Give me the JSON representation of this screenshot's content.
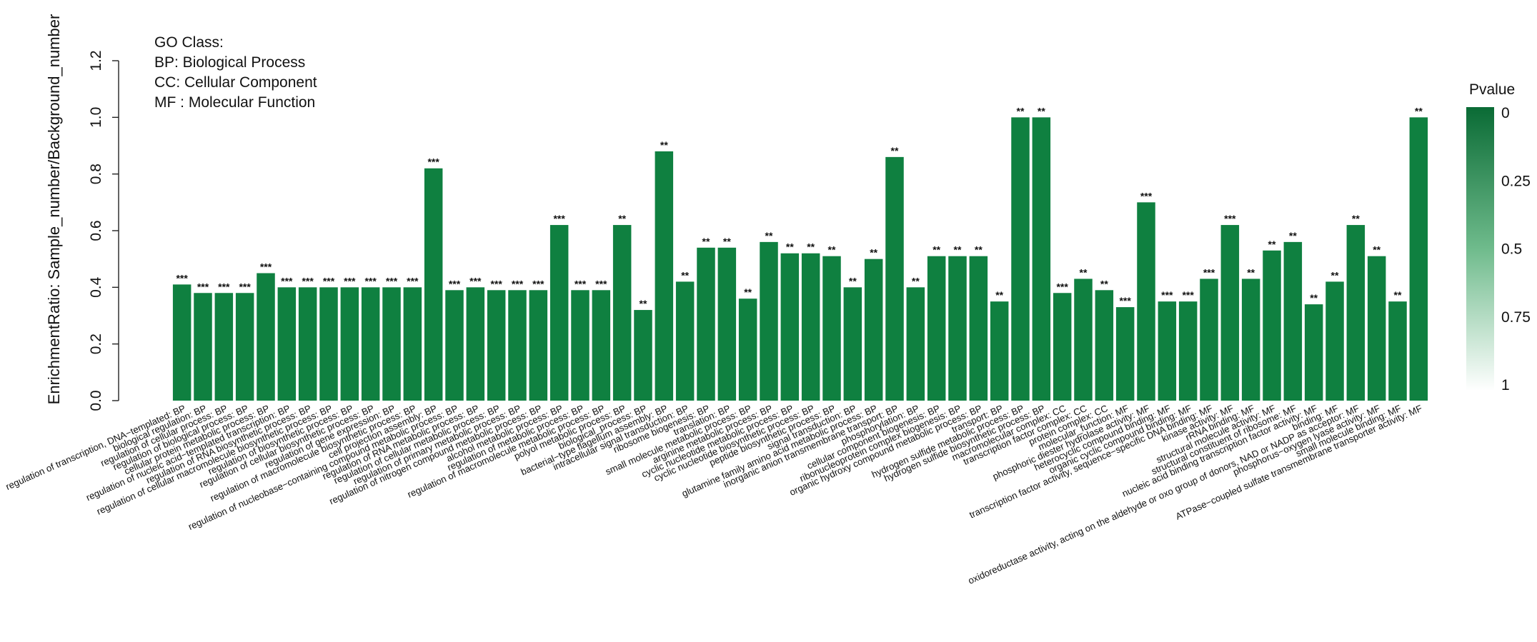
{
  "chart_data": {
    "type": "bar",
    "ylabel": "EnrichmentRatio: Sample_number/Background_number",
    "ylim": [
      0,
      1.2
    ],
    "yticks": [
      "0.0",
      "0.2",
      "0.4",
      "0.6",
      "0.8",
      "1.0",
      "1.2"
    ],
    "bar_color": "#0f8040",
    "categories": [
      "regulation of transcription, DNA−templated:  BP",
      "biological regulation:  BP",
      "regulation of cellular process:  BP",
      "regulation of biological process:  BP",
      "cellular protein metabolic process:  BP",
      "regulation of nucleic acid−templated transcription:  BP",
      "regulation of RNA biosynthetic process:  BP",
      "regulation of cellular macromolecule biosynthetic process:  BP",
      "regulation of biosynthetic process:  BP",
      "regulation of cellular biosynthetic process:  BP",
      "regulation of gene expression:  BP",
      "regulation of macromolecule biosynthetic process:  BP",
      "cell projection assembly:  BP",
      "regulation of nucleobase−containing compound metabolic process:  BP",
      "regulation of RNA metabolic process:  BP",
      "regulation of cellular metabolic process:  BP",
      "regulation of primary metabolic process:  BP",
      "regulation of nitrogen compound metabolic process:  BP",
      "alcohol metabolic process:  BP",
      "regulation of metabolic process:  BP",
      "regulation of macromolecule metabolic process:  BP",
      "polyol metabolic process:  BP",
      "biological_process:  BP",
      "bacterial−type flagellum assembly:  BP",
      "intracellular signal transduction:  BP",
      "ribosome biogenesis:  BP",
      "translation:  BP",
      "small molecule metabolic process:  BP",
      "arginine metabolic process:  BP",
      "cyclic nucleotide metabolic process:  BP",
      "cyclic nucleotide biosynthetic process:  BP",
      "peptide biosynthetic process:  BP",
      "signal transduction:  BP",
      "glutamine family amino acid metabolic process:  BP",
      "inorganic anion transmembrane transport:  BP",
      "phosphorylation:  BP",
      "cellular component biogenesis:  BP",
      "ribonucleoprotein complex biogenesis:  BP",
      "organic hydroxy compound metabolic process:  BP",
      "transport:  BP",
      "hydrogen sulfide metabolic process:  BP",
      "hydrogen sulfide biosynthetic process:  BP",
      "macromolecular complex:  CC",
      "transcription factor complex:  CC",
      "protein complex:  CC",
      "molecular_function:  MF",
      "phosphoric diester hydrolase activity:  MF",
      "heterocyclic compound binding:  MF",
      "organic cyclic compound binding:  MF",
      "transcription factor activity, sequence−specific DNA binding:  MF",
      "kinase activity:  MF",
      "rRNA binding:  MF",
      "structural molecule activity:  MF",
      "structural constituent of ribosome:  MF",
      "nucleic acid binding transcription factor activity:  MF",
      "binding:  MF",
      "oxidoreductase activity, acting on the aldehyde or oxo group of donors, NAD or NADP as acceptor:  MF",
      "phosphorus−oxygen lyase activity:  MF",
      "small molecule binding:  MF",
      "ATPase−coupled sulfate transmembrane transporter activity:  MF"
    ],
    "values": [
      0.41,
      0.38,
      0.38,
      0.38,
      0.45,
      0.4,
      0.4,
      0.4,
      0.4,
      0.4,
      0.4,
      0.4,
      0.82,
      0.39,
      0.4,
      0.39,
      0.39,
      0.39,
      0.62,
      0.39,
      0.39,
      0.62,
      0.32,
      0.88,
      0.42,
      0.54,
      0.54,
      0.36,
      0.56,
      0.52,
      0.52,
      0.51,
      0.4,
      0.5,
      0.86,
      0.4,
      0.51,
      0.51,
      0.51,
      0.35,
      1.0,
      1.0,
      0.38,
      0.43,
      0.39,
      0.33,
      0.7,
      0.35,
      0.35,
      0.43,
      0.62,
      0.43,
      0.53,
      0.56,
      0.34,
      0.42,
      0.62,
      0.51,
      0.35,
      1.0
    ],
    "significance": [
      "***",
      "***",
      "***",
      "***",
      "***",
      "***",
      "***",
      "***",
      "***",
      "***",
      "***",
      "***",
      "***",
      "***",
      "***",
      "***",
      "***",
      "***",
      "***",
      "***",
      "***",
      "**",
      "**",
      "**",
      "**",
      "**",
      "**",
      "**",
      "**",
      "**",
      "**",
      "**",
      "**",
      "**",
      "**",
      "**",
      "**",
      "**",
      "**",
      "**",
      "**",
      "**",
      "***",
      "**",
      "**",
      "***",
      "***",
      "***",
      "***",
      "***",
      "***",
      "**",
      "**",
      "**",
      "**",
      "**",
      "**",
      "**",
      "**",
      "**"
    ],
    "legend_note": {
      "title": "GO Class:",
      "lines": [
        "BP: Biological Process",
        "CC: Cellular Component",
        "MF : Molecular Function"
      ]
    },
    "color_scale": {
      "title": "Pvalue",
      "ticks": [
        "0",
        "0.25",
        "0.5",
        "0.75",
        "1"
      ],
      "color_high": "#0a6b35",
      "color_low": "#ffffff"
    }
  }
}
